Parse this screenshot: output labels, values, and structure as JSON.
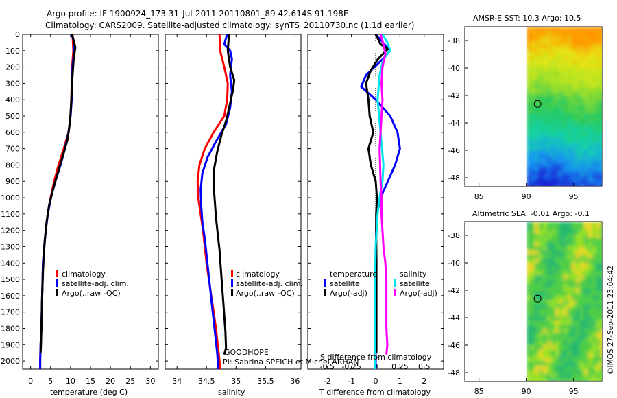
{
  "header": {
    "line1": "Argo profile: IF 1900924_173 31-Jul-2011 20110801_89 42.614S 91.198E",
    "line2": "Climatology: CARS2009. Satellite-adjusted climatology: synTS_20110730.nc (1.1d earlier)"
  },
  "footer": {
    "goodhope": "GOODHOPE",
    "pi": "PI: Sabrina SPEICH et Michel ARHAN",
    "imos_stamp": "©IMOS 27-Sep-2011 23:04:42"
  },
  "colors": {
    "climatology": "#ff0000",
    "satellite": "#0000ff",
    "argo": "#000000",
    "sat_sal": "#00e5ee",
    "argo_sal": "#ff00ff"
  },
  "chart_data": [
    {
      "type": "line",
      "id": "temperature",
      "xlabel": "temperature (deg C)",
      "xlim": [
        -2,
        32
      ],
      "ylim": [
        2050,
        0
      ],
      "xticks": [
        "0",
        "5",
        "10",
        "15",
        "20",
        "25",
        "30"
      ],
      "xtick_values": [
        0,
        5,
        10,
        15,
        20,
        25,
        30
      ],
      "yticks": [
        "0",
        "100",
        "200",
        "300",
        "400",
        "500",
        "600",
        "700",
        "800",
        "900",
        "1000",
        "1100",
        "1200",
        "1300",
        "1400",
        "1500",
        "1600",
        "1700",
        "1800",
        "1900",
        "2000"
      ],
      "ytick_values": [
        0,
        100,
        200,
        300,
        400,
        500,
        600,
        700,
        800,
        900,
        1000,
        1100,
        1200,
        1300,
        1400,
        1500,
        1600,
        1700,
        1800,
        1900,
        2000
      ],
      "legend": [
        "climatology",
        "satellite-adj. clim.",
        "Argo(..raw -QC)"
      ],
      "series": [
        {
          "name": "climatology",
          "color": "#ff0000",
          "points": [
            [
              10.5,
              0
            ],
            [
              10.7,
              100
            ],
            [
              10.4,
              200
            ],
            [
              10.3,
              300
            ],
            [
              10.2,
              400
            ],
            [
              10.0,
              500
            ],
            [
              9.5,
              600
            ],
            [
              8.3,
              700
            ],
            [
              7.0,
              800
            ],
            [
              5.9,
              900
            ],
            [
              5.0,
              1000
            ],
            [
              4.3,
              1100
            ],
            [
              3.8,
              1200
            ],
            [
              3.4,
              1300
            ],
            [
              3.1,
              1400
            ],
            [
              2.9,
              1600
            ],
            [
              2.7,
              1800
            ],
            [
              2.5,
              1900
            ],
            [
              2.4,
              2000
            ],
            [
              2.4,
              2050
            ]
          ]
        },
        {
          "name": "satellite-adj. clim.",
          "color": "#0000ff",
          "points": [
            [
              10.3,
              0
            ],
            [
              11.0,
              60
            ],
            [
              10.9,
              100
            ],
            [
              10.5,
              200
            ],
            [
              10.4,
              300
            ],
            [
              10.3,
              400
            ],
            [
              10.0,
              500
            ],
            [
              9.5,
              600
            ],
            [
              8.6,
              700
            ],
            [
              7.5,
              800
            ],
            [
              6.2,
              900
            ],
            [
              5.1,
              1000
            ],
            [
              4.3,
              1100
            ],
            [
              3.8,
              1200
            ],
            [
              3.4,
              1300
            ],
            [
              3.1,
              1400
            ],
            [
              2.9,
              1600
            ],
            [
              2.7,
              1800
            ],
            [
              2.5,
              1900
            ],
            [
              2.4,
              2000
            ],
            [
              2.4,
              2050
            ]
          ]
        },
        {
          "name": "Argo(..raw -QC)",
          "color": "#000000",
          "points": [
            [
              10.4,
              0
            ],
            [
              11.2,
              80
            ],
            [
              10.8,
              150
            ],
            [
              10.5,
              250
            ],
            [
              10.3,
              350
            ],
            [
              10.1,
              450
            ],
            [
              9.8,
              550
            ],
            [
              9.2,
              650
            ],
            [
              8.0,
              750
            ],
            [
              6.8,
              850
            ],
            [
              5.6,
              950
            ],
            [
              4.6,
              1050
            ],
            [
              4.0,
              1150
            ],
            [
              3.6,
              1250
            ],
            [
              3.3,
              1350
            ],
            [
              3.1,
              1450
            ],
            [
              2.9,
              1600
            ],
            [
              2.7,
              1800
            ],
            [
              2.6,
              1900
            ],
            [
              2.5,
              1950
            ]
          ]
        }
      ]
    },
    {
      "type": "line",
      "id": "salinity",
      "xlabel": "salinity",
      "xlim": [
        33.8,
        36.1
      ],
      "ylim": [
        2050,
        0
      ],
      "xticks": [
        "34",
        "34.5",
        "35",
        "35.5",
        "36"
      ],
      "xtick_values": [
        34,
        34.5,
        35,
        35.5,
        36
      ],
      "legend": [
        "climatology",
        "satellite-adj. clim.",
        "Argo(..raw -QC)"
      ],
      "series": [
        {
          "name": "climatology",
          "color": "#ff0000",
          "points": [
            [
              34.72,
              0
            ],
            [
              34.73,
              100
            ],
            [
              34.8,
              200
            ],
            [
              34.86,
              300
            ],
            [
              34.85,
              400
            ],
            [
              34.8,
              500
            ],
            [
              34.62,
              600
            ],
            [
              34.47,
              700
            ],
            [
              34.38,
              800
            ],
            [
              34.35,
              900
            ],
            [
              34.36,
              1000
            ],
            [
              34.4,
              1100
            ],
            [
              34.44,
              1200
            ],
            [
              34.47,
              1300
            ],
            [
              34.5,
              1400
            ],
            [
              34.54,
              1500
            ],
            [
              34.58,
              1600
            ],
            [
              34.62,
              1700
            ],
            [
              34.66,
              1800
            ],
            [
              34.69,
              1900
            ],
            [
              34.72,
              2000
            ],
            [
              34.73,
              2050
            ]
          ]
        },
        {
          "name": "satellite-adj. clim.",
          "color": "#0000ff",
          "points": [
            [
              34.85,
              0
            ],
            [
              34.8,
              60
            ],
            [
              34.9,
              100
            ],
            [
              34.93,
              150
            ],
            [
              34.9,
              250
            ],
            [
              34.93,
              350
            ],
            [
              34.9,
              450
            ],
            [
              34.83,
              550
            ],
            [
              34.67,
              650
            ],
            [
              34.52,
              750
            ],
            [
              34.43,
              850
            ],
            [
              34.4,
              950
            ],
            [
              34.41,
              1050
            ],
            [
              34.43,
              1150
            ],
            [
              34.47,
              1250
            ],
            [
              34.5,
              1350
            ],
            [
              34.53,
              1450
            ],
            [
              34.56,
              1550
            ],
            [
              34.59,
              1650
            ],
            [
              34.62,
              1750
            ],
            [
              34.65,
              1850
            ],
            [
              34.68,
              1950
            ],
            [
              34.7,
              2050
            ]
          ]
        },
        {
          "name": "Argo(..raw -QC)",
          "color": "#000000",
          "points": [
            [
              34.88,
              0
            ],
            [
              34.86,
              100
            ],
            [
              34.9,
              200
            ],
            [
              34.97,
              280
            ],
            [
              34.95,
              340
            ],
            [
              34.9,
              420
            ],
            [
              34.84,
              520
            ],
            [
              34.75,
              620
            ],
            [
              34.68,
              720
            ],
            [
              34.63,
              820
            ],
            [
              34.62,
              920
            ],
            [
              34.64,
              1020
            ],
            [
              34.66,
              1120
            ],
            [
              34.69,
              1220
            ],
            [
              34.72,
              1320
            ],
            [
              34.74,
              1420
            ],
            [
              34.76,
              1520
            ],
            [
              34.78,
              1620
            ],
            [
              34.8,
              1720
            ],
            [
              34.82,
              1820
            ],
            [
              34.83,
              1920
            ],
            [
              34.8,
              1960
            ]
          ]
        }
      ]
    },
    {
      "type": "line",
      "id": "difference",
      "xlabel_bottom": "T difference from climatology",
      "xlabel_top": "S difference from climatology",
      "xlim": [
        -2.8,
        2.8
      ],
      "ylim": [
        2050,
        0
      ],
      "xticks": [
        "-2",
        "-1",
        "0",
        "1",
        "2"
      ],
      "xtick_values": [
        -2,
        -1,
        0,
        1,
        2
      ],
      "sticks": [
        "-0.5",
        "-0.25",
        "0",
        "0.25",
        "0.5"
      ],
      "stick_values": [
        -0.5,
        -0.25,
        0,
        0.25,
        0.5
      ],
      "s_scale": 4,
      "legend_temperature_title": "temperature",
      "legend_salinity_title": "salinity",
      "legend": [
        "satellite",
        "Argo(-adj)",
        "satellite",
        "Argo(-adj)"
      ],
      "t_series": [
        {
          "name": "satellite",
          "color": "#0000ff",
          "points": [
            [
              0.0,
              0
            ],
            [
              0.3,
              50
            ],
            [
              0.6,
              100
            ],
            [
              0.3,
              150
            ],
            [
              -0.4,
              250
            ],
            [
              -0.6,
              320
            ],
            [
              0.0,
              400
            ],
            [
              0.6,
              500
            ],
            [
              0.9,
              600
            ],
            [
              1.0,
              700
            ],
            [
              0.8,
              800
            ],
            [
              0.5,
              900
            ],
            [
              0.2,
              1000
            ],
            [
              0.05,
              1100
            ],
            [
              0.02,
              1200
            ],
            [
              0,
              1400
            ],
            [
              0,
              1600
            ],
            [
              0,
              1800
            ],
            [
              0,
              2000
            ],
            [
              0,
              2050
            ]
          ]
        },
        {
          "name": "Argo(-adj)",
          "color": "#000000",
          "points": [
            [
              0.0,
              0
            ],
            [
              0.2,
              60
            ],
            [
              0.5,
              90
            ],
            [
              0.1,
              150
            ],
            [
              -0.2,
              220
            ],
            [
              -0.4,
              300
            ],
            [
              -0.3,
              400
            ],
            [
              -0.25,
              500
            ],
            [
              -0.1,
              600
            ],
            [
              -0.3,
              700
            ],
            [
              -0.2,
              800
            ],
            [
              0.0,
              900
            ],
            [
              0.05,
              1000
            ],
            [
              0.02,
              1100
            ],
            [
              0.02,
              1200
            ],
            [
              0.03,
              1400
            ],
            [
              0.03,
              1600
            ],
            [
              0.03,
              1800
            ],
            [
              0.03,
              1950
            ]
          ]
        }
      ],
      "s_series": [
        {
          "name": "satellite",
          "color": "#00e5ee",
          "points": [
            [
              0.07,
              0
            ],
            [
              0.12,
              50
            ],
            [
              0.15,
              100
            ],
            [
              0.08,
              150
            ],
            [
              0.04,
              250
            ],
            [
              0.02,
              400
            ],
            [
              0.05,
              600
            ],
            [
              0.08,
              800
            ],
            [
              0.07,
              900
            ],
            [
              0.04,
              1000
            ],
            [
              0.02,
              1100
            ],
            [
              0.0,
              1300
            ],
            [
              -0.01,
              1600
            ],
            [
              -0.01,
              2000
            ],
            [
              -0.01,
              2050
            ]
          ]
        },
        {
          "name": "Argo(-adj)",
          "color": "#ff00ff",
          "points": [
            [
              0.05,
              0
            ],
            [
              0.08,
              60
            ],
            [
              0.1,
              120
            ],
            [
              0.07,
              200
            ],
            [
              0.06,
              300
            ],
            [
              0.07,
              400
            ],
            [
              0.06,
              500
            ],
            [
              0.04,
              700
            ],
            [
              0.05,
              900
            ],
            [
              0.06,
              1000
            ],
            [
              0.06,
              1100
            ],
            [
              0.07,
              1200
            ],
            [
              0.08,
              1300
            ],
            [
              0.1,
              1400
            ],
            [
              0.11,
              1500
            ],
            [
              0.11,
              1600
            ],
            [
              0.11,
              1700
            ],
            [
              0.11,
              1800
            ],
            [
              0.12,
              1900
            ],
            [
              0.11,
              1960
            ]
          ]
        }
      ]
    },
    {
      "type": "heatmap",
      "id": "amsre_sst",
      "title": "AMSR-E SST: 10.3 Argo: 10.5",
      "xlim": [
        83.5,
        98
      ],
      "ylim": [
        -48.6,
        -37
      ],
      "xticks": [
        "85",
        "90",
        "95"
      ],
      "xtick_values": [
        85,
        90,
        95
      ],
      "yticks": [
        "-38",
        "-40",
        "-42",
        "-44",
        "-46",
        "-48"
      ],
      "ytick_values": [
        -38,
        -40,
        -42,
        -44,
        -46,
        -48
      ],
      "data_xmin": 90,
      "argo_position": [
        91.198,
        -42.614
      ]
    },
    {
      "type": "heatmap",
      "id": "altimetric_sla",
      "title": "Altimetric SLA: -0.01 Argo: -0.1",
      "xlim": [
        83.5,
        98
      ],
      "ylim": [
        -48.6,
        -37
      ],
      "xticks": [
        "85",
        "90",
        "95"
      ],
      "xtick_values": [
        85,
        90,
        95
      ],
      "yticks": [
        "-38",
        "-40",
        "-42",
        "-44",
        "-46",
        "-48"
      ],
      "ytick_values": [
        -38,
        -40,
        -42,
        -44,
        -46,
        -48
      ],
      "data_xmin": 90,
      "argo_position": [
        91.198,
        -42.614
      ]
    }
  ]
}
